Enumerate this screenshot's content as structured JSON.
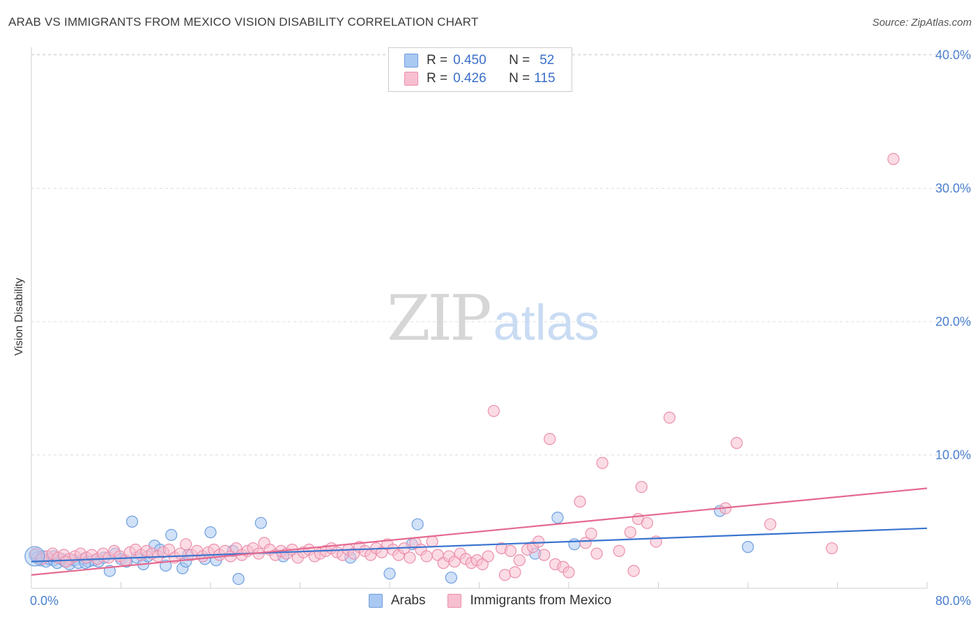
{
  "chart_data": {
    "type": "scatter",
    "title": "ARAB VS IMMIGRANTS FROM MEXICO VISION DISABILITY CORRELATION CHART",
    "source": "Source: ZipAtlas.com",
    "xlabel": "",
    "ylabel": "Vision Disability",
    "xlim": [
      0,
      80
    ],
    "ylim": [
      0,
      40
    ],
    "x_tick_labels": [
      "0.0%",
      "80.0%"
    ],
    "y_ticks": [
      10,
      20,
      30,
      40
    ],
    "y_tick_labels": [
      "10.0%",
      "20.0%",
      "30.0%",
      "40.0%"
    ],
    "grid": true,
    "legend": [
      {
        "name": "Arabs",
        "r_label": "R =",
        "r": "0.450",
        "n_label": "N =",
        "n": "52",
        "color": "#a9c8f2",
        "edge": "#6f9fdd"
      },
      {
        "name": "Immigrants from Mexico",
        "r_label": "R =",
        "r": "0.426",
        "n_label": "N =",
        "n": "115",
        "color": "#f7bfd0",
        "edge": "#ec8fab"
      }
    ],
    "watermark": {
      "left": "ZIP",
      "right": "atlas"
    },
    "series": [
      {
        "name": "Arabs",
        "color": "#a9c8f2",
        "edge": "#6f9fdd",
        "trend": {
          "x": [
            0,
            80
          ],
          "y": [
            2.0,
            4.5
          ],
          "color": "#3a74cf"
        },
        "points": [
          [
            0.3,
            2.5
          ],
          [
            0.5,
            2.3
          ],
          [
            0.8,
            2.1
          ],
          [
            1.0,
            2.4
          ],
          [
            1.3,
            2.0
          ],
          [
            1.6,
            2.2
          ],
          [
            2.0,
            2.1
          ],
          [
            2.3,
            1.9
          ],
          [
            2.7,
            2.2
          ],
          [
            3.0,
            2.0
          ],
          [
            3.4,
            1.8
          ],
          [
            3.8,
            2.1
          ],
          [
            4.2,
            1.9
          ],
          [
            4.7,
            2.2
          ],
          [
            5.1,
            2.0
          ],
          [
            5.6,
            2.1
          ],
          [
            6.0,
            2.0
          ],
          [
            6.5,
            2.3
          ],
          [
            7.0,
            1.3
          ],
          [
            7.5,
            2.6
          ],
          [
            8.0,
            2.2
          ],
          [
            8.5,
            2.0
          ],
          [
            9.0,
            5.0
          ],
          [
            9.4,
            2.3
          ],
          [
            10.0,
            1.8
          ],
          [
            10.4,
            2.4
          ],
          [
            11.0,
            3.2
          ],
          [
            11.5,
            2.9
          ],
          [
            12.0,
            1.7
          ],
          [
            12.5,
            4.0
          ],
          [
            13.5,
            1.5
          ],
          [
            13.8,
            2.0
          ],
          [
            14.0,
            2.5
          ],
          [
            15.5,
            2.2
          ],
          [
            16.0,
            4.2
          ],
          [
            16.5,
            2.1
          ],
          [
            18.0,
            2.8
          ],
          [
            18.5,
            0.7
          ],
          [
            20.5,
            4.9
          ],
          [
            22.5,
            2.4
          ],
          [
            28.5,
            2.3
          ],
          [
            32.0,
            1.1
          ],
          [
            34.0,
            3.3
          ],
          [
            34.5,
            4.8
          ],
          [
            37.5,
            0.8
          ],
          [
            45.0,
            2.6
          ],
          [
            47.0,
            5.3
          ],
          [
            48.5,
            3.3
          ],
          [
            61.5,
            5.8
          ],
          [
            64.0,
            3.1
          ],
          [
            2.0,
            2.4
          ],
          [
            4.8,
            1.9
          ]
        ]
      },
      {
        "name": "Immigrants from Mexico",
        "color": "#f7bfd0",
        "edge": "#ec8fab",
        "trend": {
          "x": [
            0,
            80
          ],
          "y": [
            1.0,
            7.5
          ],
          "color": "#e4698f"
        },
        "points": [
          [
            0.4,
            2.6
          ],
          [
            0.9,
            2.2
          ],
          [
            1.4,
            2.4
          ],
          [
            1.9,
            2.6
          ],
          [
            2.4,
            2.3
          ],
          [
            2.9,
            2.5
          ],
          [
            3.4,
            2.2
          ],
          [
            3.9,
            2.4
          ],
          [
            4.4,
            2.6
          ],
          [
            4.9,
            2.3
          ],
          [
            5.4,
            2.5
          ],
          [
            5.9,
            2.2
          ],
          [
            6.4,
            2.6
          ],
          [
            6.9,
            2.3
          ],
          [
            7.4,
            2.8
          ],
          [
            7.9,
            2.4
          ],
          [
            8.4,
            2.1
          ],
          [
            8.8,
            2.7
          ],
          [
            9.3,
            2.9
          ],
          [
            9.8,
            2.5
          ],
          [
            10.3,
            2.8
          ],
          [
            10.8,
            2.6
          ],
          [
            11.3,
            2.4
          ],
          [
            11.8,
            2.7
          ],
          [
            12.3,
            2.9
          ],
          [
            12.8,
            2.3
          ],
          [
            13.3,
            2.6
          ],
          [
            13.8,
            3.3
          ],
          [
            14.3,
            2.5
          ],
          [
            14.8,
            2.8
          ],
          [
            15.3,
            2.4
          ],
          [
            15.8,
            2.7
          ],
          [
            16.3,
            2.9
          ],
          [
            16.8,
            2.5
          ],
          [
            17.3,
            2.8
          ],
          [
            17.8,
            2.4
          ],
          [
            18.3,
            3.0
          ],
          [
            18.8,
            2.5
          ],
          [
            19.3,
            2.8
          ],
          [
            19.8,
            3.0
          ],
          [
            20.3,
            2.6
          ],
          [
            20.8,
            3.4
          ],
          [
            21.3,
            2.9
          ],
          [
            21.8,
            2.5
          ],
          [
            22.3,
            2.8
          ],
          [
            22.8,
            2.6
          ],
          [
            23.3,
            2.9
          ],
          [
            23.8,
            2.3
          ],
          [
            24.3,
            2.7
          ],
          [
            24.8,
            2.9
          ],
          [
            25.3,
            2.4
          ],
          [
            25.8,
            2.6
          ],
          [
            26.3,
            2.8
          ],
          [
            26.8,
            3.0
          ],
          [
            27.3,
            2.7
          ],
          [
            27.8,
            2.5
          ],
          [
            28.3,
            2.9
          ],
          [
            28.8,
            2.6
          ],
          [
            29.3,
            3.1
          ],
          [
            29.8,
            2.8
          ],
          [
            30.3,
            2.5
          ],
          [
            30.8,
            3.0
          ],
          [
            31.3,
            2.7
          ],
          [
            31.8,
            3.3
          ],
          [
            32.3,
            2.9
          ],
          [
            32.8,
            2.5
          ],
          [
            33.3,
            3.0
          ],
          [
            33.8,
            2.3
          ],
          [
            34.3,
            3.4
          ],
          [
            34.8,
            2.9
          ],
          [
            35.3,
            2.4
          ],
          [
            35.8,
            3.5
          ],
          [
            36.3,
            2.5
          ],
          [
            36.8,
            1.9
          ],
          [
            37.3,
            2.4
          ],
          [
            37.8,
            2.0
          ],
          [
            38.3,
            2.6
          ],
          [
            38.8,
            2.2
          ],
          [
            39.3,
            1.9
          ],
          [
            39.8,
            2.1
          ],
          [
            40.3,
            1.8
          ],
          [
            40.8,
            2.4
          ],
          [
            41.3,
            13.3
          ],
          [
            42.0,
            3.0
          ],
          [
            42.3,
            1.0
          ],
          [
            42.8,
            2.8
          ],
          [
            43.2,
            1.2
          ],
          [
            43.6,
            2.1
          ],
          [
            44.3,
            2.9
          ],
          [
            44.8,
            3.1
          ],
          [
            45.3,
            3.5
          ],
          [
            45.8,
            2.5
          ],
          [
            46.3,
            11.2
          ],
          [
            46.8,
            1.8
          ],
          [
            47.5,
            1.6
          ],
          [
            48.0,
            1.2
          ],
          [
            49.0,
            6.5
          ],
          [
            49.5,
            3.4
          ],
          [
            50.0,
            4.1
          ],
          [
            50.5,
            2.6
          ],
          [
            51.0,
            9.4
          ],
          [
            52.5,
            2.8
          ],
          [
            53.5,
            4.2
          ],
          [
            53.8,
            1.3
          ],
          [
            54.2,
            5.2
          ],
          [
            54.5,
            7.6
          ],
          [
            55.0,
            4.9
          ],
          [
            55.8,
            3.5
          ],
          [
            57.0,
            12.8
          ],
          [
            62.0,
            6.0
          ],
          [
            63.0,
            10.9
          ],
          [
            66.0,
            4.8
          ],
          [
            71.5,
            3.0
          ],
          [
            77.0,
            32.2
          ],
          [
            3.1,
            2.0
          ]
        ]
      }
    ]
  }
}
